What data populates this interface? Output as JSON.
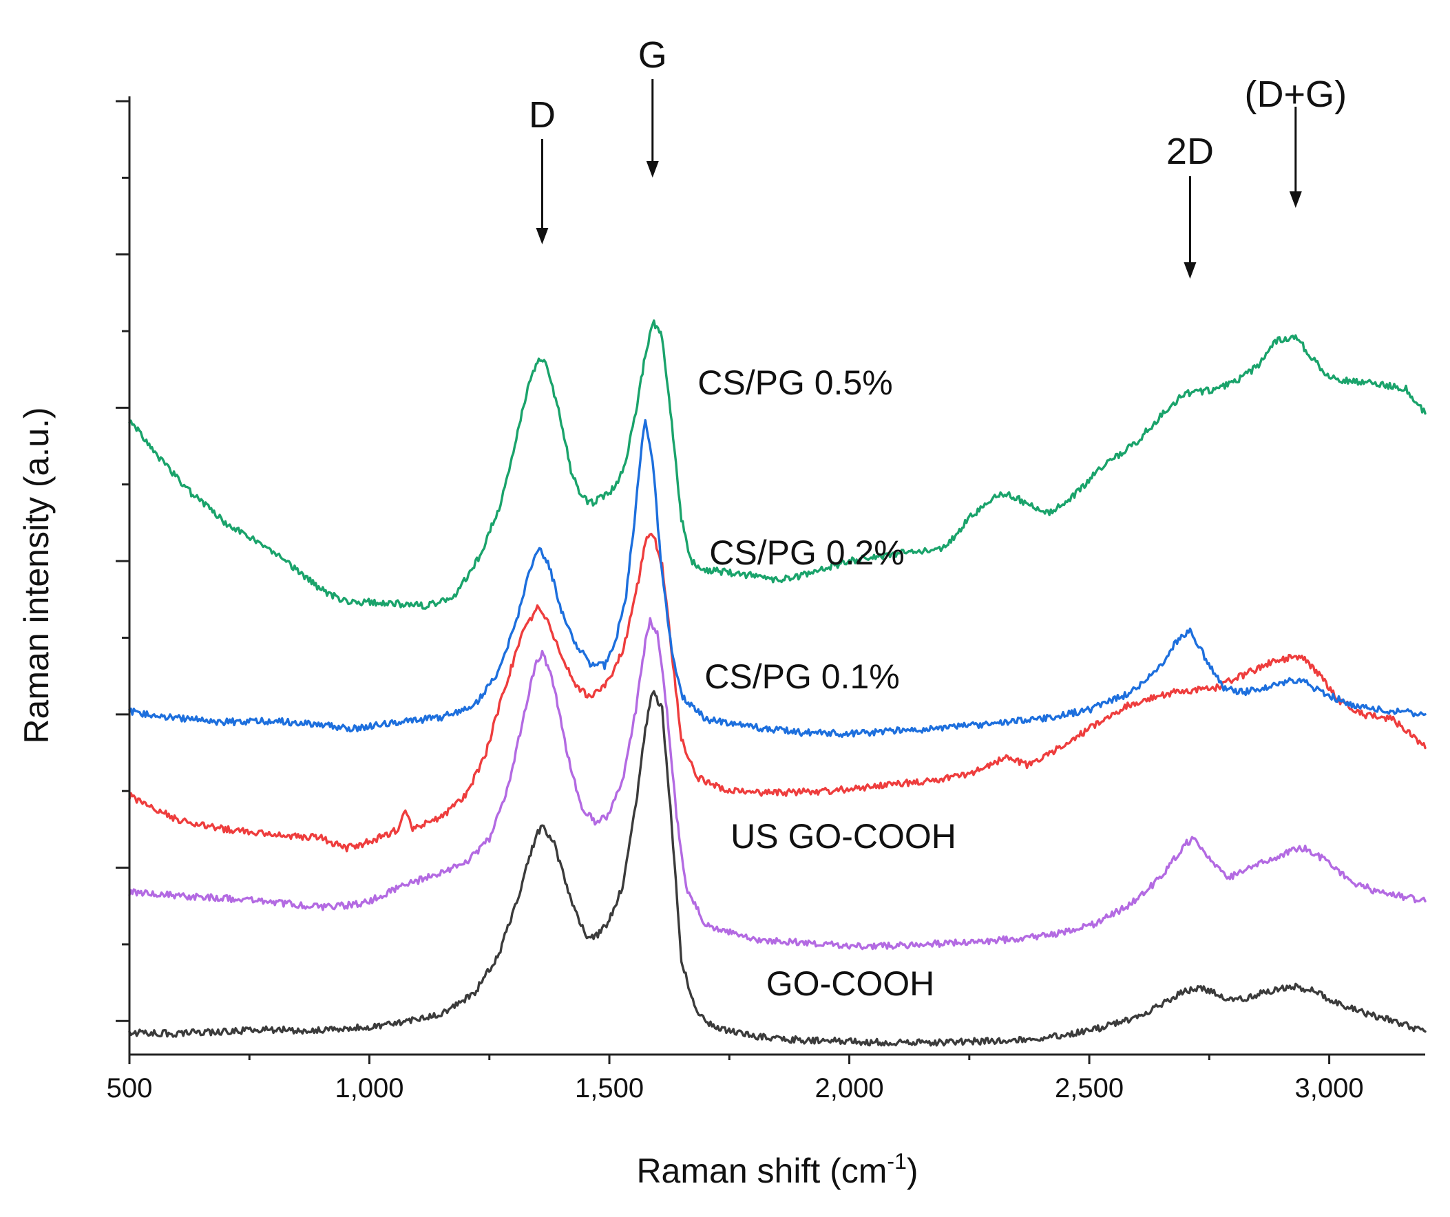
{
  "chart_data": {
    "type": "line",
    "title": "",
    "xlabel": "Raman shift (cm",
    "xlabel_sup": "-1",
    "xlabel_close": ")",
    "ylabel": "Raman intensity (a.u.)",
    "xlim": [
      500,
      3200
    ],
    "ylim": [
      0,
      100
    ],
    "x_ticks": [
      500,
      1000,
      1500,
      2000,
      2500,
      3000
    ],
    "x_tick_labels": [
      "500",
      "1,000",
      "1,500",
      "2,000",
      "2,500",
      "3,000"
    ],
    "x_minor_step": 250,
    "y_tick_values": [
      3.5,
      11.5,
      19.5,
      27.5,
      35.5,
      43.5,
      51.5,
      59.5,
      67.5,
      75.5,
      83.5,
      91.5,
      99.5
    ],
    "y_major_every": 2,
    "grid": false,
    "legend": "inline labels next to each curve",
    "peak_annotations": [
      {
        "label": "D",
        "x": 1360
      },
      {
        "label": "G",
        "x": 1590
      },
      {
        "label": "2D",
        "x": 2710
      },
      {
        "label": "(D+G)",
        "x": 2930
      }
    ],
    "series": [
      {
        "name": "GO-COOH",
        "color": "#3b3b3b",
        "label": "GO-COOH",
        "points": [
          [
            500,
            2.3
          ],
          [
            600,
            2.2
          ],
          [
            700,
            2.4
          ],
          [
            800,
            2.6
          ],
          [
            900,
            2.5
          ],
          [
            960,
            2.7
          ],
          [
            1050,
            3.2
          ],
          [
            1150,
            4.2
          ],
          [
            1220,
            6.5
          ],
          [
            1270,
            10.5
          ],
          [
            1310,
            16.5
          ],
          [
            1345,
            22.5
          ],
          [
            1360,
            24
          ],
          [
            1385,
            22
          ],
          [
            1420,
            16
          ],
          [
            1450,
            12.5
          ],
          [
            1470,
            12.2
          ],
          [
            1500,
            14
          ],
          [
            1530,
            18
          ],
          [
            1555,
            26
          ],
          [
            1575,
            34
          ],
          [
            1590,
            38
          ],
          [
            1610,
            36
          ],
          [
            1630,
            24
          ],
          [
            1650,
            10
          ],
          [
            1680,
            4.5
          ],
          [
            1720,
            2.8
          ],
          [
            1800,
            1.9
          ],
          [
            1900,
            1.5
          ],
          [
            2000,
            1.4
          ],
          [
            2100,
            1.2
          ],
          [
            2200,
            1.3
          ],
          [
            2300,
            1.4
          ],
          [
            2400,
            1.7
          ],
          [
            2500,
            2.5
          ],
          [
            2600,
            3.8
          ],
          [
            2660,
            5.5
          ],
          [
            2700,
            6.6
          ],
          [
            2720,
            7
          ],
          [
            2760,
            6.5
          ],
          [
            2800,
            5.5
          ],
          [
            2860,
            6.4
          ],
          [
            2930,
            7.1
          ],
          [
            2970,
            6.6
          ],
          [
            3020,
            5.2
          ],
          [
            3080,
            4.2
          ],
          [
            3140,
            3.4
          ],
          [
            3200,
            2.4
          ]
        ]
      },
      {
        "name": "US GO-COOH",
        "color": "#b36ae2",
        "label": "US GO-COOH",
        "points": [
          [
            500,
            17
          ],
          [
            600,
            16.6
          ],
          [
            700,
            16.3
          ],
          [
            800,
            15.9
          ],
          [
            900,
            15.4
          ],
          [
            960,
            15.6
          ],
          [
            1000,
            16
          ],
          [
            1050,
            17.2
          ],
          [
            1120,
            18.5
          ],
          [
            1200,
            20
          ],
          [
            1250,
            22.5
          ],
          [
            1290,
            28
          ],
          [
            1320,
            35
          ],
          [
            1345,
            40.5
          ],
          [
            1360,
            42
          ],
          [
            1380,
            39.5
          ],
          [
            1410,
            32
          ],
          [
            1440,
            26
          ],
          [
            1470,
            24.3
          ],
          [
            1500,
            25
          ],
          [
            1530,
            29
          ],
          [
            1555,
            36
          ],
          [
            1575,
            43
          ],
          [
            1585,
            45.3
          ],
          [
            1600,
            44
          ],
          [
            1620,
            36
          ],
          [
            1640,
            25
          ],
          [
            1660,
            17.5
          ],
          [
            1700,
            13.5
          ],
          [
            1800,
            12
          ],
          [
            1900,
            11.7
          ],
          [
            2000,
            11.3
          ],
          [
            2100,
            11.4
          ],
          [
            2200,
            11.6
          ],
          [
            2300,
            11.9
          ],
          [
            2400,
            12.3
          ],
          [
            2500,
            13.4
          ],
          [
            2580,
            15.5
          ],
          [
            2650,
            18.5
          ],
          [
            2700,
            22
          ],
          [
            2720,
            22.5
          ],
          [
            2750,
            20.5
          ],
          [
            2790,
            18.5
          ],
          [
            2850,
            19.8
          ],
          [
            2920,
            21.3
          ],
          [
            2950,
            21.6
          ],
          [
            2990,
            20.3
          ],
          [
            3050,
            18
          ],
          [
            3100,
            17
          ],
          [
            3200,
            16
          ]
        ]
      },
      {
        "name": "CS/PG 0.1%",
        "color": "#ee3d3d",
        "label": "CS/PG 0.1%",
        "points": [
          [
            500,
            27
          ],
          [
            600,
            24.5
          ],
          [
            700,
            23.5
          ],
          [
            800,
            23
          ],
          [
            900,
            22.6
          ],
          [
            950,
            21.5
          ],
          [
            1000,
            22.2
          ],
          [
            1060,
            23.5
          ],
          [
            1075,
            25.6
          ],
          [
            1090,
            23.6
          ],
          [
            1150,
            24.7
          ],
          [
            1200,
            27
          ],
          [
            1240,
            31
          ],
          [
            1280,
            38
          ],
          [
            1320,
            44
          ],
          [
            1350,
            46.7
          ],
          [
            1375,
            45
          ],
          [
            1400,
            41.5
          ],
          [
            1430,
            38.5
          ],
          [
            1460,
            37.3
          ],
          [
            1500,
            39
          ],
          [
            1530,
            42.5
          ],
          [
            1555,
            48
          ],
          [
            1575,
            53.5
          ],
          [
            1590,
            54.5
          ],
          [
            1610,
            51
          ],
          [
            1630,
            42
          ],
          [
            1650,
            33
          ],
          [
            1680,
            29
          ],
          [
            1750,
            27.5
          ],
          [
            1850,
            27.3
          ],
          [
            1950,
            27.5
          ],
          [
            2050,
            28
          ],
          [
            2150,
            28.5
          ],
          [
            2250,
            29.2
          ],
          [
            2300,
            30.5
          ],
          [
            2330,
            31
          ],
          [
            2370,
            30.2
          ],
          [
            2420,
            31.5
          ],
          [
            2500,
            34
          ],
          [
            2580,
            36.4
          ],
          [
            2650,
            37.5
          ],
          [
            2700,
            38
          ],
          [
            2760,
            38.2
          ],
          [
            2830,
            39.8
          ],
          [
            2880,
            41
          ],
          [
            2940,
            41.6
          ],
          [
            2970,
            40.2
          ],
          [
            3020,
            37
          ],
          [
            3070,
            35.5
          ],
          [
            3130,
            35
          ],
          [
            3170,
            33.5
          ],
          [
            3200,
            32
          ]
        ]
      },
      {
        "name": "CS/PG 0.2%",
        "color": "#1d6fdd",
        "label": "CS/PG 0.2%",
        "points": [
          [
            500,
            35.8
          ],
          [
            600,
            35.1
          ],
          [
            700,
            34.7
          ],
          [
            800,
            34.8
          ],
          [
            900,
            34.5
          ],
          [
            960,
            34
          ],
          [
            1050,
            34.6
          ],
          [
            1150,
            35.2
          ],
          [
            1220,
            36.5
          ],
          [
            1270,
            40
          ],
          [
            1310,
            46
          ],
          [
            1340,
            51.5
          ],
          [
            1357,
            52.7
          ],
          [
            1375,
            51
          ],
          [
            1400,
            46.2
          ],
          [
            1430,
            42.8
          ],
          [
            1460,
            40.8
          ],
          [
            1490,
            40.6
          ],
          [
            1510,
            42.5
          ],
          [
            1535,
            48
          ],
          [
            1555,
            57
          ],
          [
            1568,
            64
          ],
          [
            1575,
            66
          ],
          [
            1590,
            62
          ],
          [
            1610,
            50
          ],
          [
            1630,
            42
          ],
          [
            1650,
            37.5
          ],
          [
            1700,
            35
          ],
          [
            1800,
            34.2
          ],
          [
            1900,
            33.6
          ],
          [
            2000,
            33.5
          ],
          [
            2100,
            33.8
          ],
          [
            2200,
            34.1
          ],
          [
            2300,
            34.6
          ],
          [
            2400,
            35
          ],
          [
            2500,
            36
          ],
          [
            2580,
            37.6
          ],
          [
            2640,
            40
          ],
          [
            2680,
            43
          ],
          [
            2710,
            44.4
          ],
          [
            2740,
            41.5
          ],
          [
            2780,
            38.3
          ],
          [
            2820,
            37.8
          ],
          [
            2870,
            38.3
          ],
          [
            2920,
            39
          ],
          [
            2950,
            38.8
          ],
          [
            2990,
            37.7
          ],
          [
            3050,
            36.4
          ],
          [
            3100,
            36
          ],
          [
            3200,
            35.5
          ]
        ]
      },
      {
        "name": "CS/PG 0.5%",
        "color": "#1aa36b",
        "label": "CS/PG 0.5%",
        "points": [
          [
            500,
            66.3
          ],
          [
            550,
            63
          ],
          [
            620,
            59
          ],
          [
            700,
            55.5
          ],
          [
            800,
            52.5
          ],
          [
            850,
            50.5
          ],
          [
            900,
            48.5
          ],
          [
            950,
            47.3
          ],
          [
            1050,
            47.1
          ],
          [
            1120,
            46.8
          ],
          [
            1180,
            48
          ],
          [
            1230,
            52
          ],
          [
            1270,
            57
          ],
          [
            1300,
            63
          ],
          [
            1330,
            69.5
          ],
          [
            1350,
            72.5
          ],
          [
            1370,
            72
          ],
          [
            1400,
            66
          ],
          [
            1420,
            61
          ],
          [
            1440,
            58.5
          ],
          [
            1460,
            57.5
          ],
          [
            1500,
            58.5
          ],
          [
            1530,
            61
          ],
          [
            1555,
            67
          ],
          [
            1575,
            73
          ],
          [
            1590,
            76.5
          ],
          [
            1610,
            75
          ],
          [
            1630,
            66
          ],
          [
            1650,
            56
          ],
          [
            1670,
            51.5
          ],
          [
            1700,
            50.6
          ],
          [
            1800,
            50
          ],
          [
            1850,
            49.5
          ],
          [
            1900,
            50
          ],
          [
            2000,
            51.5
          ],
          [
            2100,
            52.3
          ],
          [
            2200,
            52.9
          ],
          [
            2250,
            56
          ],
          [
            2300,
            58.2
          ],
          [
            2330,
            58.6
          ],
          [
            2380,
            57.2
          ],
          [
            2420,
            56.6
          ],
          [
            2460,
            58
          ],
          [
            2520,
            61
          ],
          [
            2600,
            64
          ],
          [
            2660,
            67.3
          ],
          [
            2700,
            69
          ],
          [
            2750,
            69.3
          ],
          [
            2800,
            70.1
          ],
          [
            2850,
            71.8
          ],
          [
            2890,
            74.5
          ],
          [
            2930,
            74.9
          ],
          [
            2960,
            73
          ],
          [
            3000,
            70.6
          ],
          [
            3060,
            70.2
          ],
          [
            3120,
            69.8
          ],
          [
            3160,
            69.5
          ],
          [
            3200,
            66.9
          ]
        ]
      }
    ]
  }
}
